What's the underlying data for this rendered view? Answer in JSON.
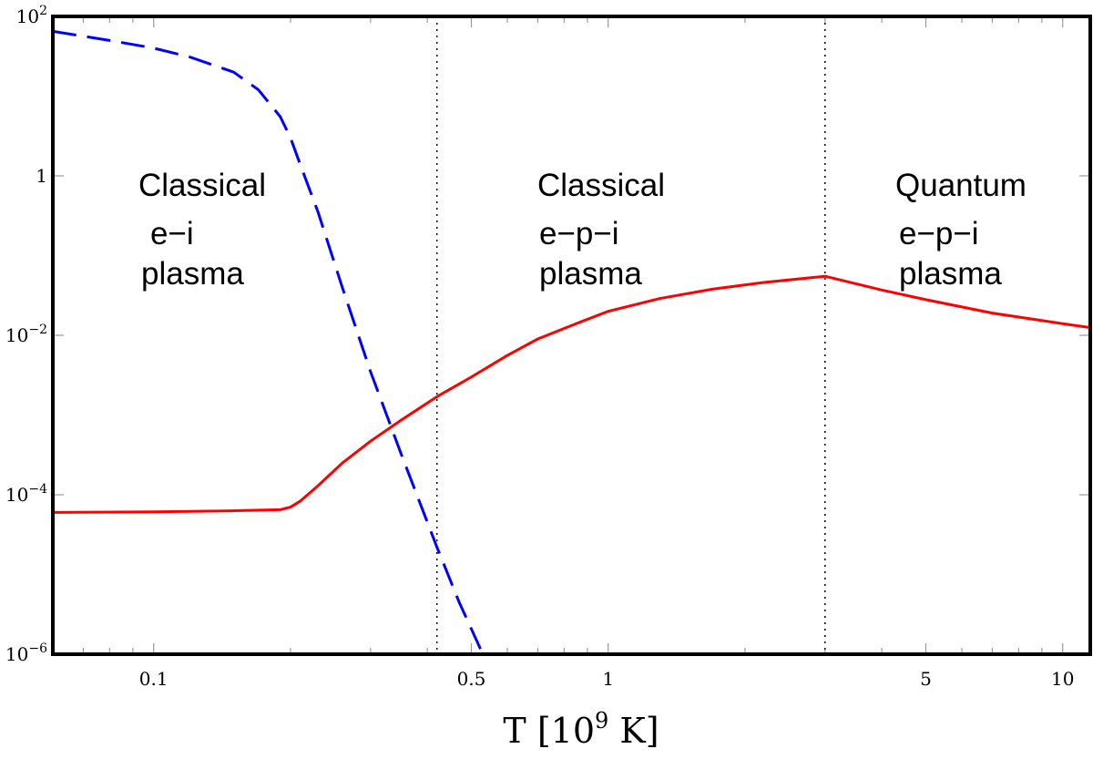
{
  "chart_data": {
    "type": "line",
    "title": "",
    "xlabel": {
      "text": "T [10",
      "exp": "9",
      "unit": " K]"
    },
    "ylabel": "",
    "xscale": "log",
    "yscale": "log",
    "xlim": [
      0.06,
      11.5
    ],
    "ylim_exponents": [
      -6,
      2
    ],
    "x_ticks": [
      {
        "value": 0.1,
        "label": "0.1"
      },
      {
        "value": 0.5,
        "label": "0.5"
      },
      {
        "value": 1,
        "label": "1"
      },
      {
        "value": 5,
        "label": "5"
      },
      {
        "value": 10,
        "label": "10"
      }
    ],
    "y_ticks": [
      {
        "exp": 2,
        "base": "10",
        "sup": "2"
      },
      {
        "exp": 0,
        "base": "1",
        "sup": ""
      },
      {
        "exp": -2,
        "base": "10",
        "sup": "−2"
      },
      {
        "exp": -4,
        "base": "10",
        "sup": "−4"
      },
      {
        "exp": -6,
        "base": "10",
        "sup": "−6"
      }
    ],
    "vertical_lines": [
      {
        "name": "boundary-classical-ei-epi",
        "x": 0.42,
        "style": "dotted"
      },
      {
        "name": "boundary-classical-quantum",
        "x": 3.0,
        "style": "dotted"
      }
    ],
    "regions": [
      {
        "name": "classical-ei",
        "lines": [
          "Classical",
          "e−i",
          "plasma"
        ]
      },
      {
        "name": "classical-epi",
        "lines": [
          "Classical",
          "e−p−i",
          "plasma"
        ]
      },
      {
        "name": "quantum-epi",
        "lines": [
          "Quantum",
          "e−p−i",
          "plasma"
        ]
      }
    ],
    "series": [
      {
        "name": "red-solid-curve",
        "color": "#ff0000",
        "style": "solid",
        "x": [
          0.06,
          0.1,
          0.15,
          0.19,
          0.2,
          0.21,
          0.23,
          0.26,
          0.3,
          0.35,
          0.42,
          0.5,
          0.6,
          0.7,
          0.85,
          1.0,
          1.3,
          1.7,
          2.2,
          3.0,
          4.0,
          5.0,
          7.0,
          10.0,
          11.5
        ],
        "y": [
          6e-05,
          6.1e-05,
          6.3e-05,
          6.5e-05,
          7e-05,
          8.3e-05,
          0.00013,
          0.00025,
          0.00047,
          0.00086,
          0.0017,
          0.003,
          0.0056,
          0.009,
          0.014,
          0.02,
          0.029,
          0.038,
          0.046,
          0.055,
          0.037,
          0.028,
          0.019,
          0.014,
          0.0125
        ]
      },
      {
        "name": "blue-dashed-curve",
        "color": "#0000ff",
        "style": "dashed",
        "x": [
          0.06,
          0.08,
          0.1,
          0.12,
          0.15,
          0.17,
          0.19,
          0.2,
          0.21,
          0.23,
          0.26,
          0.3,
          0.35,
          0.42,
          0.47,
          0.53
        ],
        "y": [
          65,
          50,
          40,
          31,
          20,
          12,
          5.5,
          3.0,
          1.4,
          0.35,
          0.04,
          0.0035,
          0.00033,
          2.2e-05,
          4.5e-06,
          1e-06
        ]
      }
    ]
  }
}
